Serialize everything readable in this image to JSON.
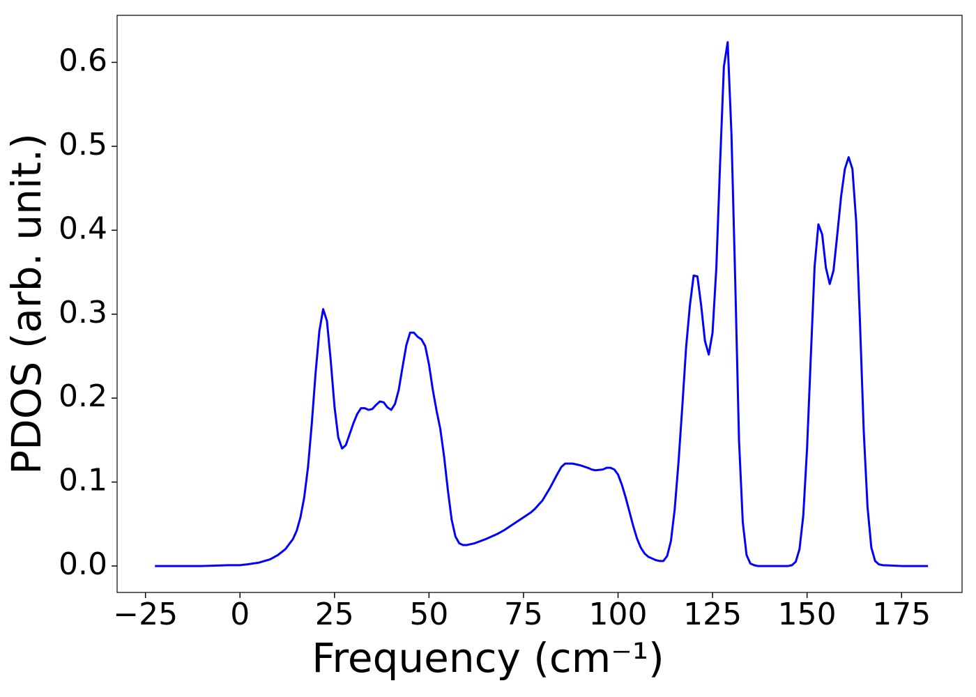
{
  "chart_data": {
    "type": "line",
    "xlabel": "Frequency (cm⁻¹)",
    "ylabel": "PDOS (arb. unit.)",
    "x": [
      -22.5,
      -10,
      -3,
      0,
      2,
      5,
      8,
      10,
      12,
      14,
      15,
      16,
      17,
      18,
      19,
      20,
      21,
      22,
      23,
      24,
      25,
      26,
      27,
      28,
      29,
      30,
      31,
      32,
      33,
      34,
      35,
      36,
      37,
      38,
      39,
      40,
      41,
      42,
      43,
      44,
      45,
      46,
      47,
      48,
      49,
      50,
      51,
      52,
      53,
      54,
      55,
      56,
      57,
      58,
      59,
      60,
      62,
      65,
      68,
      70,
      72,
      75,
      77,
      78,
      80,
      82,
      84,
      85,
      86,
      88,
      90,
      92,
      93,
      94,
      96,
      97,
      98,
      99,
      100,
      101,
      102,
      103,
      104,
      105,
      106,
      107,
      108,
      110,
      111,
      112,
      113,
      114,
      115,
      116,
      117,
      118,
      119,
      120,
      121,
      122,
      123,
      124,
      125,
      126,
      127,
      128,
      129,
      130,
      131,
      132,
      133,
      134,
      135,
      136,
      137,
      140,
      145,
      146,
      147,
      148,
      149,
      150,
      151,
      152,
      153,
      154,
      155,
      156,
      157,
      158,
      159,
      160,
      161,
      162,
      163,
      164,
      165,
      166,
      167,
      168,
      169,
      170,
      175,
      182
    ],
    "series": [
      {
        "name": "PDOS",
        "color": "#0000ff",
        "values": [
          0,
          0,
          0.001,
          0.001,
          0.002,
          0.004,
          0.008,
          0.013,
          0.02,
          0.032,
          0.042,
          0.058,
          0.082,
          0.118,
          0.17,
          0.23,
          0.28,
          0.306,
          0.292,
          0.245,
          0.19,
          0.153,
          0.14,
          0.144,
          0.157,
          0.17,
          0.181,
          0.188,
          0.188,
          0.186,
          0.187,
          0.192,
          0.196,
          0.195,
          0.189,
          0.186,
          0.193,
          0.21,
          0.237,
          0.263,
          0.278,
          0.278,
          0.273,
          0.27,
          0.262,
          0.24,
          0.21,
          0.185,
          0.163,
          0.13,
          0.09,
          0.055,
          0.035,
          0.027,
          0.025,
          0.025,
          0.027,
          0.032,
          0.038,
          0.043,
          0.049,
          0.058,
          0.064,
          0.068,
          0.078,
          0.093,
          0.11,
          0.118,
          0.122,
          0.122,
          0.12,
          0.117,
          0.115,
          0.114,
          0.115,
          0.117,
          0.117,
          0.115,
          0.109,
          0.097,
          0.082,
          0.065,
          0.048,
          0.033,
          0.022,
          0.015,
          0.011,
          0.007,
          0.006,
          0.006,
          0.012,
          0.03,
          0.068,
          0.124,
          0.19,
          0.26,
          0.31,
          0.346,
          0.345,
          0.31,
          0.268,
          0.252,
          0.278,
          0.355,
          0.48,
          0.595,
          0.624,
          0.515,
          0.34,
          0.15,
          0.052,
          0.013,
          0.003,
          0.001,
          0,
          0,
          0,
          0.001,
          0.005,
          0.02,
          0.06,
          0.14,
          0.25,
          0.357,
          0.407,
          0.395,
          0.355,
          0.336,
          0.352,
          0.395,
          0.44,
          0.473,
          0.487,
          0.473,
          0.41,
          0.29,
          0.16,
          0.07,
          0.022,
          0.006,
          0.002,
          0.001,
          0,
          0
        ]
      }
    ],
    "xlim": [
      -32.5,
      191
    ],
    "ylim": [
      -0.0315,
      0.656
    ],
    "xticks": [
      {
        "value": -25,
        "label": "−25"
      },
      0,
      25,
      50,
      75,
      100,
      125,
      150,
      175
    ],
    "yticks": [
      {
        "value": 0,
        "label": "0.0"
      },
      0.1,
      0.2,
      0.3,
      0.4,
      0.5,
      0.6
    ],
    "grid": false
  }
}
